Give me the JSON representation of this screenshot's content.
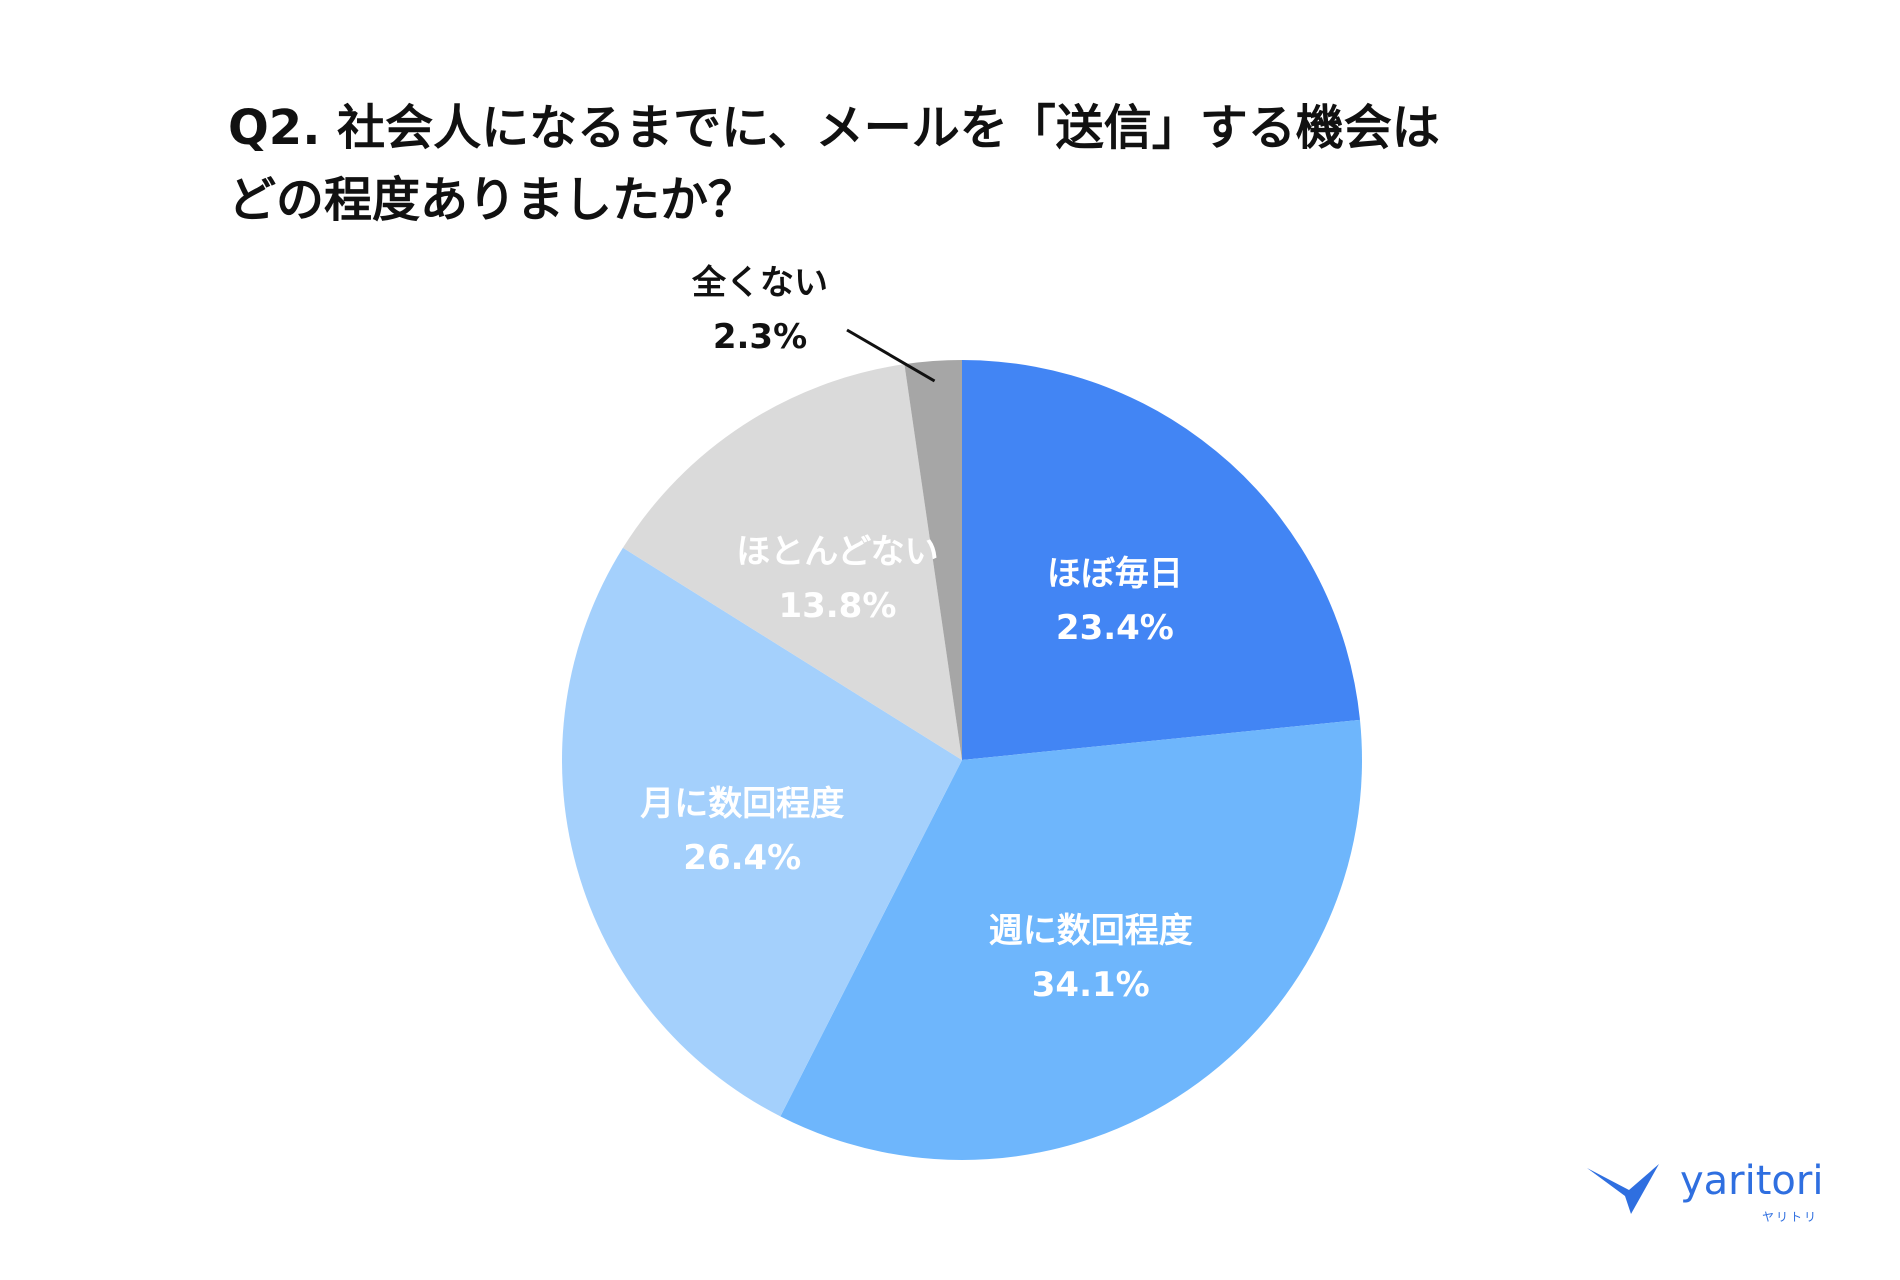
{
  "title_lines": [
    "Q2. 社会人になるまでに、メールを「送信」する機会は",
    "どの程度ありましたか？"
  ],
  "chart_data": {
    "type": "pie",
    "title": "Q2. 社会人になるまでに、メールを「送信」する機会は どの程度ありましたか？",
    "slices": [
      {
        "label": "ほぼ毎日",
        "value": 23.4,
        "value_label": "23.4%",
        "color": "#4285f4",
        "text_color": "#ffffff"
      },
      {
        "label": "週に数回程度",
        "value": 34.1,
        "value_label": "34.1%",
        "color": "#6eb6fc",
        "text_color": "#ffffff"
      },
      {
        "label": "月に数回程度",
        "value": 26.4,
        "value_label": "26.4%",
        "color": "#a4d0fc",
        "text_color": "#ffffff"
      },
      {
        "label": "ほとんどない",
        "value": 13.8,
        "value_label": "13.8%",
        "color": "#dadada",
        "text_color": "#ffffff"
      },
      {
        "label": "全くない",
        "value": 2.3,
        "value_label": "2.3%",
        "color": "#a6a6a6",
        "text_color": "#111111",
        "label_outside": true
      }
    ],
    "start_angle": "12 o'clock",
    "direction": "clockwise",
    "legend": "none"
  },
  "logo": {
    "wordmark": "yaritori",
    "kana": "ヤリトリ",
    "color": "#2f6fe0"
  }
}
